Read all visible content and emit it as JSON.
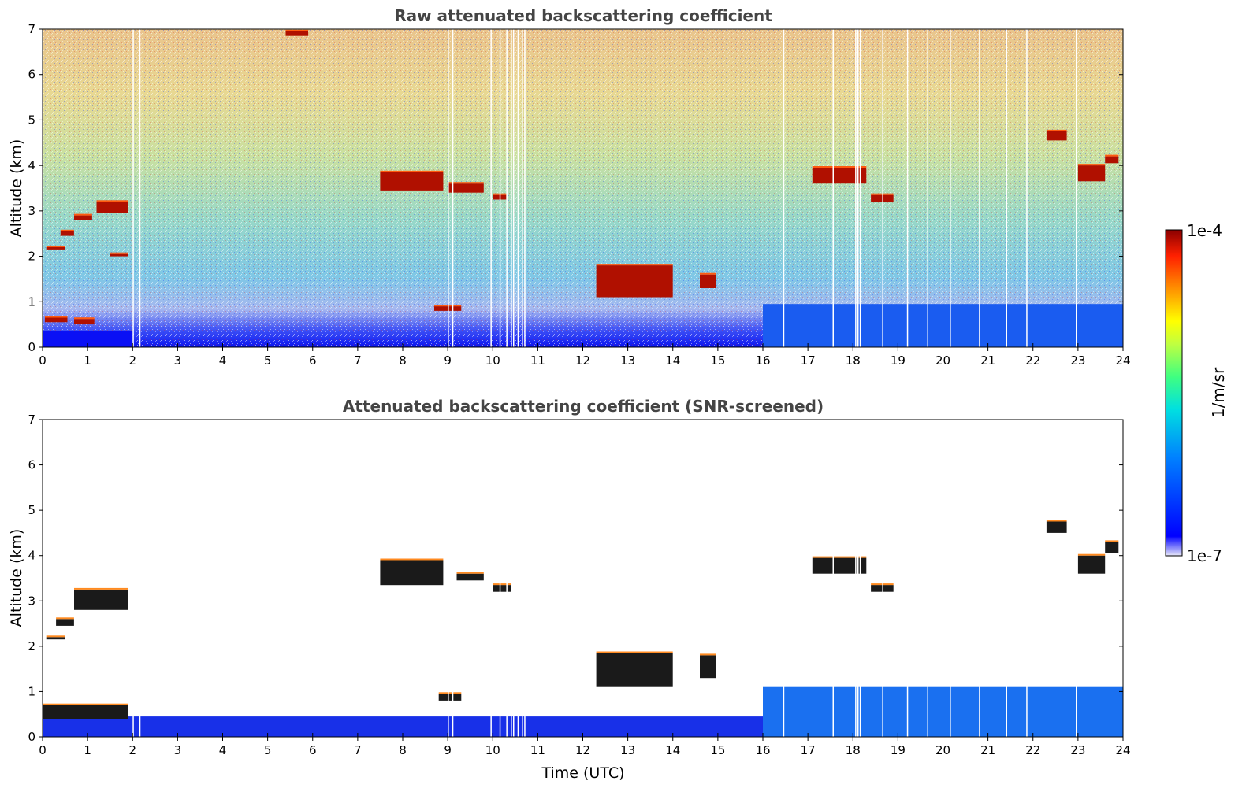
{
  "chart_data": [
    {
      "type": "heatmap",
      "title": "Raw attenuated backscattering coefficient",
      "xlabel": "",
      "ylabel": "Altitude (km)",
      "xlim": [
        0,
        24
      ],
      "ylim": [
        0,
        7
      ],
      "x_ticks": [
        "0",
        "1",
        "2",
        "3",
        "4",
        "5",
        "6",
        "7",
        "8",
        "9",
        "10",
        "11",
        "12",
        "13",
        "14",
        "15",
        "16",
        "17",
        "18",
        "19",
        "20",
        "21",
        "22",
        "23",
        "24"
      ],
      "y_ticks": [
        "0",
        "1",
        "2",
        "3",
        "4",
        "5",
        "6",
        "7"
      ],
      "screened": false,
      "features": [
        {
          "t0": 0.0,
          "t1": 2.0,
          "z0": 0.0,
          "z1": 0.35,
          "kind": "near_surface"
        },
        {
          "t0": 16.0,
          "t1": 24.0,
          "z0": 0.0,
          "z1": 0.95,
          "kind": "boundary_layer"
        },
        {
          "t0": 0.05,
          "t1": 0.55,
          "z0": 0.55,
          "z1": 0.65,
          "kind": "cloud"
        },
        {
          "t0": 0.7,
          "t1": 1.15,
          "z0": 0.5,
          "z1": 0.62,
          "kind": "cloud"
        },
        {
          "t0": 0.1,
          "t1": 0.5,
          "z0": 2.15,
          "z1": 2.2,
          "kind": "cloud"
        },
        {
          "t0": 0.4,
          "t1": 0.7,
          "z0": 2.45,
          "z1": 2.55,
          "kind": "cloud"
        },
        {
          "t0": 0.7,
          "t1": 1.1,
          "z0": 2.8,
          "z1": 2.9,
          "kind": "cloud"
        },
        {
          "t0": 1.2,
          "t1": 1.9,
          "z0": 2.95,
          "z1": 3.2,
          "kind": "cloud"
        },
        {
          "t0": 1.5,
          "t1": 1.9,
          "z0": 2.0,
          "z1": 2.05,
          "kind": "cloud"
        },
        {
          "t0": 5.4,
          "t1": 5.9,
          "z0": 6.85,
          "z1": 6.95,
          "kind": "cloud"
        },
        {
          "t0": 7.5,
          "t1": 8.9,
          "z0": 3.45,
          "z1": 3.85,
          "kind": "cloud"
        },
        {
          "t0": 9.0,
          "t1": 9.8,
          "z0": 3.4,
          "z1": 3.6,
          "kind": "cloud"
        },
        {
          "t0": 10.0,
          "t1": 10.3,
          "z0": 3.25,
          "z1": 3.35,
          "kind": "cloud"
        },
        {
          "t0": 8.7,
          "t1": 9.3,
          "z0": 0.8,
          "z1": 0.9,
          "kind": "cloud"
        },
        {
          "t0": 12.3,
          "t1": 14.0,
          "z0": 1.1,
          "z1": 1.8,
          "kind": "cloud"
        },
        {
          "t0": 14.6,
          "t1": 14.95,
          "z0": 1.3,
          "z1": 1.6,
          "kind": "cloud"
        },
        {
          "t0": 17.1,
          "t1": 18.3,
          "z0": 3.6,
          "z1": 3.95,
          "kind": "cloud"
        },
        {
          "t0": 18.4,
          "t1": 18.9,
          "z0": 3.2,
          "z1": 3.35,
          "kind": "cloud"
        },
        {
          "t0": 22.3,
          "t1": 22.75,
          "z0": 4.55,
          "z1": 4.75,
          "kind": "cloud"
        },
        {
          "t0": 23.0,
          "t1": 23.6,
          "z0": 3.65,
          "z1": 4.0,
          "kind": "cloud"
        },
        {
          "t0": 23.6,
          "t1": 23.9,
          "z0": 4.05,
          "z1": 4.2,
          "kind": "cloud"
        }
      ]
    },
    {
      "type": "heatmap",
      "title": "Attenuated backscattering coefficient (SNR-screened)",
      "xlabel": "Time (UTC)",
      "ylabel": "Altitude (km)",
      "xlim": [
        0,
        24
      ],
      "ylim": [
        0,
        7
      ],
      "x_ticks": [
        "0",
        "1",
        "2",
        "3",
        "4",
        "5",
        "6",
        "7",
        "8",
        "9",
        "10",
        "11",
        "12",
        "13",
        "14",
        "15",
        "16",
        "17",
        "18",
        "19",
        "20",
        "21",
        "22",
        "23",
        "24"
      ],
      "y_ticks": [
        "0",
        "1",
        "2",
        "3",
        "4",
        "5",
        "6",
        "7"
      ],
      "screened": true,
      "features": [
        {
          "t0": 0.0,
          "t1": 16.0,
          "z0": 0.0,
          "z1": 0.45,
          "kind": "near_surface"
        },
        {
          "t0": 16.0,
          "t1": 24.0,
          "z0": 0.0,
          "z1": 1.1,
          "kind": "boundary_layer"
        },
        {
          "t0": 0.0,
          "t1": 1.9,
          "z0": 0.4,
          "z1": 0.7,
          "kind": "cloud"
        },
        {
          "t0": 0.1,
          "t1": 0.5,
          "z0": 2.15,
          "z1": 2.2,
          "kind": "cloud"
        },
        {
          "t0": 0.3,
          "t1": 0.7,
          "z0": 2.45,
          "z1": 2.6,
          "kind": "cloud"
        },
        {
          "t0": 0.7,
          "t1": 1.9,
          "z0": 2.8,
          "z1": 3.25,
          "kind": "cloud"
        },
        {
          "t0": 7.5,
          "t1": 8.9,
          "z0": 3.35,
          "z1": 3.9,
          "kind": "cloud"
        },
        {
          "t0": 9.2,
          "t1": 9.8,
          "z0": 3.45,
          "z1": 3.6,
          "kind": "cloud"
        },
        {
          "t0": 10.0,
          "t1": 10.4,
          "z0": 3.2,
          "z1": 3.35,
          "kind": "cloud"
        },
        {
          "t0": 8.8,
          "t1": 9.3,
          "z0": 0.8,
          "z1": 0.95,
          "kind": "cloud"
        },
        {
          "t0": 12.3,
          "t1": 14.0,
          "z0": 1.1,
          "z1": 1.85,
          "kind": "cloud"
        },
        {
          "t0": 14.6,
          "t1": 14.95,
          "z0": 1.3,
          "z1": 1.8,
          "kind": "cloud"
        },
        {
          "t0": 17.1,
          "t1": 18.3,
          "z0": 3.6,
          "z1": 3.95,
          "kind": "cloud"
        },
        {
          "t0": 18.4,
          "t1": 18.9,
          "z0": 3.2,
          "z1": 3.35,
          "kind": "cloud"
        },
        {
          "t0": 22.3,
          "t1": 22.75,
          "z0": 4.5,
          "z1": 4.75,
          "kind": "cloud"
        },
        {
          "t0": 23.0,
          "t1": 23.6,
          "z0": 3.6,
          "z1": 4.0,
          "kind": "cloud"
        },
        {
          "t0": 23.6,
          "t1": 23.9,
          "z0": 4.05,
          "z1": 4.3,
          "kind": "cloud"
        }
      ]
    }
  ],
  "colorbar": {
    "max_label": "1e-4",
    "min_label": "1e-7",
    "unit_label": "1/m/sr",
    "colormap": [
      "#e8e8f8",
      "#0000ff",
      "#0080ff",
      "#00e0e0",
      "#40ff80",
      "#c0ff40",
      "#ffff00",
      "#ff9000",
      "#ff2000",
      "#8b0000"
    ]
  }
}
